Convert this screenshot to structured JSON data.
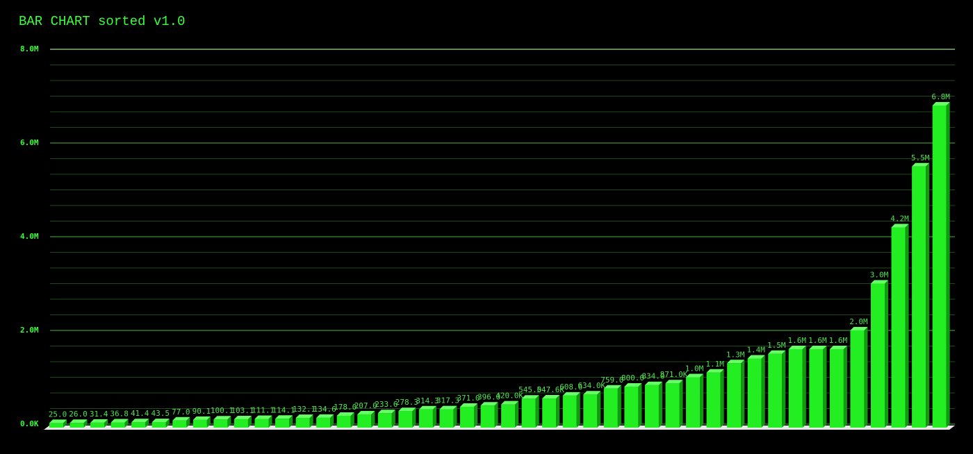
{
  "chart_data": {
    "type": "bar",
    "title": "BAR CHART sorted v1.0",
    "xlabel": "",
    "ylabel": "",
    "ylim": [
      0,
      8000000
    ],
    "y_ticks": [
      {
        "value": 0,
        "label": "0.0K"
      },
      {
        "value": 2000000,
        "label": "2.0M"
      },
      {
        "value": 4000000,
        "label": "4.0M"
      },
      {
        "value": 6000000,
        "label": "6.0M"
      },
      {
        "value": 8000000,
        "label": "8.0M"
      }
    ],
    "grid": true,
    "values": [
      25000,
      26000,
      31400,
      36800,
      41400,
      43500,
      77000,
      90100,
      100100,
      103100,
      111100,
      114100,
      132100,
      134600,
      178000,
      207000,
      233600,
      278300,
      314300,
      317300,
      371000,
      396000,
      420000,
      545000,
      547600,
      608600,
      634000,
      759000,
      800000,
      834000,
      871000,
      1000000,
      1100000,
      1300000,
      1400000,
      1500000,
      1600000,
      1600000,
      1600000,
      2000000,
      3000000,
      4200000,
      5500000,
      6800000
    ],
    "labels": [
      "25.0",
      "26.0",
      "31.4",
      "36.8",
      "41.4",
      "43.5",
      "77.0",
      "90.1",
      "100.1",
      "103.1",
      "111.1",
      "114.1",
      "132.1",
      "134.6",
      "178.0",
      "207.0",
      "233.6",
      "278.3",
      "314.3",
      "317.3",
      "371.0",
      "396.0",
      "420.0K",
      "545.0",
      "547.6K",
      "608.6",
      "634.0K",
      "759.0",
      "800.0",
      "834.0",
      "871.0K",
      "1.0M",
      "1.1M",
      "1.3M",
      "1.4M",
      "1.5M",
      "1.6M",
      "1.6M",
      "1.6M",
      "2.0M",
      "3.0M",
      "4.2M",
      "5.5M",
      "6.8M"
    ],
    "colors": {
      "bar_front": "#22ee22",
      "bar_top": "#66ff66",
      "bar_side": "#0f9a0f",
      "grid_major": "#3c8f2e",
      "grid_minor": "#1f4a18",
      "floor": "#e8e8e8",
      "background": "#000000"
    }
  }
}
